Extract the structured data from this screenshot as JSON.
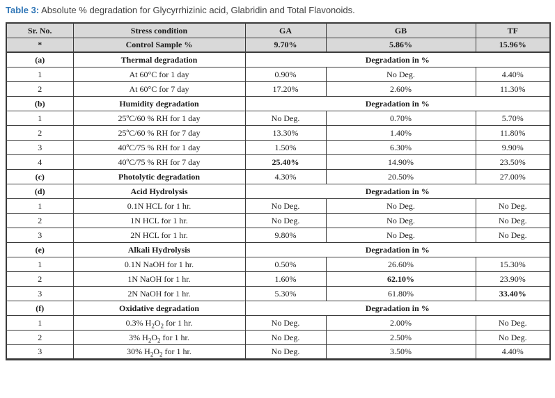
{
  "caption": {
    "label": "Table 3:",
    "text": "Absolute % degradation for Glycyrrhizinic acid, Glabridin and Total Flavonoids."
  },
  "colors": {
    "accent_blue": "#2e75b6",
    "row_shade": "#d9d9d9",
    "border": "#3a3a3a"
  },
  "table": {
    "headers": [
      "Sr. No.",
      "Stress condition",
      "GA",
      "GB",
      "TF"
    ],
    "rows": [
      {
        "sr": "*",
        "condition": "Control Sample %",
        "values": [
          "9.70%",
          "5.86%",
          "15.96%"
        ],
        "shaded": true,
        "bold": true,
        "control": true
      },
      {
        "sr": "(a)",
        "condition": "Thermal degradation",
        "merged": "Degradation in %",
        "bold": true
      },
      {
        "sr": "1",
        "condition": "At 60°C for 1 day",
        "values": [
          "0.90%",
          "No Deg.",
          "4.40%"
        ]
      },
      {
        "sr": "2",
        "condition": "At 60°C for 7 day",
        "values": [
          "17.20%",
          "2.60%",
          "11.30%"
        ]
      },
      {
        "sr": "(b)",
        "condition": "Humidity degradation",
        "merged": "Degradation in %",
        "bold": true
      },
      {
        "sr": "1",
        "condition": "25ºC/60 % RH for 1 day",
        "values": [
          "No Deg.",
          "0.70%",
          "5.70%"
        ]
      },
      {
        "sr": "2",
        "condition": "25ºC/60 % RH for 7 day",
        "values": [
          "13.30%",
          "1.40%",
          "11.80%"
        ]
      },
      {
        "sr": "3",
        "condition": "40ºC/75 % RH for 1 day",
        "values": [
          "1.50%",
          "6.30%",
          "9.90%"
        ]
      },
      {
        "sr": "4",
        "condition": "40ºC/75 % RH for 7 day",
        "values": [
          "25.40%",
          "14.90%",
          "23.50%"
        ],
        "boldValues": [
          0
        ]
      },
      {
        "sr": "(c)",
        "condition": "Photolytic degradation",
        "values": [
          "4.30%",
          "20.50%",
          "27.00%"
        ],
        "boldLabel": true
      },
      {
        "sr": "(d)",
        "condition": "Acid Hydrolysis",
        "merged": "Degradation in %",
        "bold": true
      },
      {
        "sr": "1",
        "condition": "0.1N HCL for 1 hr.",
        "values": [
          "No Deg.",
          "No Deg.",
          "No Deg."
        ]
      },
      {
        "sr": "2",
        "condition": "1N HCL for 1 hr.",
        "values": [
          "No Deg.",
          "No Deg.",
          "No Deg."
        ]
      },
      {
        "sr": "3",
        "condition": "2N HCL for 1 hr.",
        "values": [
          "9.80%",
          "No Deg.",
          "No Deg."
        ]
      },
      {
        "sr": "(e)",
        "condition": "Alkali Hydrolysis",
        "merged": "Degradation in %",
        "bold": true
      },
      {
        "sr": "1",
        "condition": "0.1N NaOH for 1 hr.",
        "values": [
          "0.50%",
          "26.60%",
          "15.30%"
        ]
      },
      {
        "sr": "2",
        "condition": "1N NaOH for 1 hr.",
        "values": [
          "1.60%",
          "62.10%",
          "23.90%"
        ],
        "boldValues": [
          1
        ]
      },
      {
        "sr": "3",
        "condition": "2N NaOH for 1 hr.",
        "values": [
          "5.30%",
          "61.80%",
          "33.40%"
        ],
        "boldValues": [
          2
        ]
      },
      {
        "sr": "(f)",
        "condition": "Oxidative degradation",
        "merged": "Degradation in %",
        "bold": true
      },
      {
        "sr": "1",
        "condition": "0.3% H₂O₂ for 1 hr.",
        "values": [
          "No Deg.",
          "2.00%",
          "No Deg."
        ]
      },
      {
        "sr": "2",
        "condition": "3% H₂O₂ for 1 hr.",
        "values": [
          "No Deg.",
          "2.50%",
          "No Deg."
        ]
      },
      {
        "sr": "3",
        "condition": "30% H₂O₂ for 1 hr.",
        "values": [
          "No Deg.",
          "3.50%",
          "4.40%"
        ]
      }
    ]
  }
}
